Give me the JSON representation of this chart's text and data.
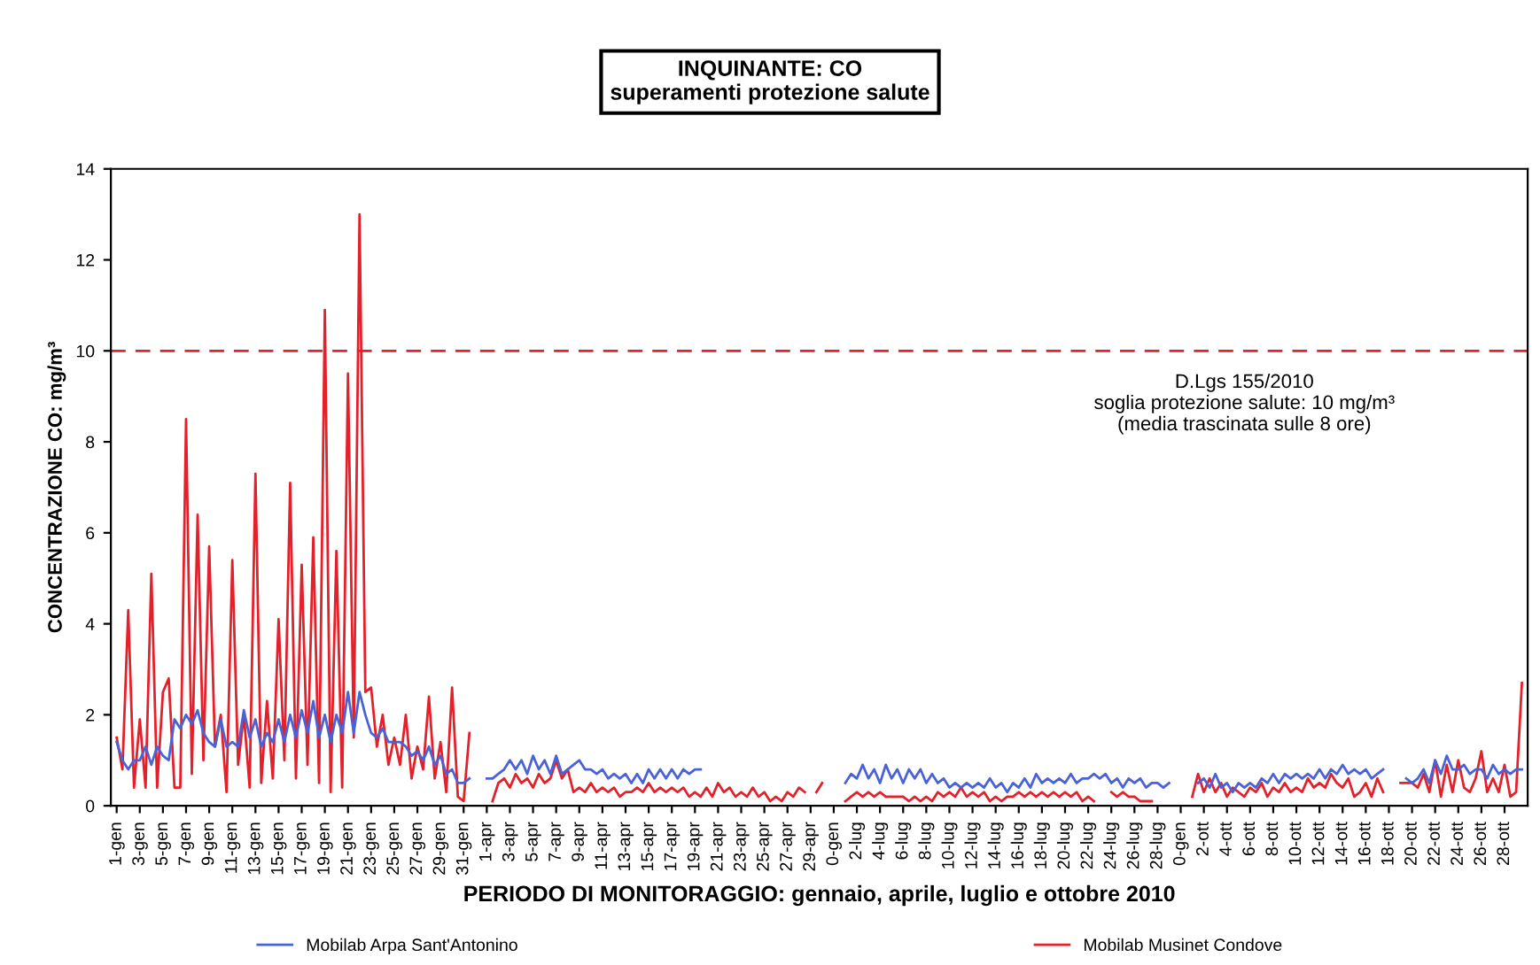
{
  "chart_data": {
    "type": "line",
    "title": "INQUINANTE: CO",
    "subtitle": "superamenti protezione salute",
    "xlabel": "PERIODO DI MONITORAGGIO: gennaio, aprile, luglio e ottobre 2010",
    "ylabel": "CONCENTRAZIONE CO: mg/m³",
    "categories": [
      "1-gen",
      null,
      null,
      null,
      "3-gen",
      null,
      null,
      null,
      "5-gen",
      null,
      null,
      null,
      "7-gen",
      null,
      null,
      null,
      "9-gen",
      null,
      null,
      null,
      "11-gen",
      null,
      null,
      null,
      "13-gen",
      null,
      null,
      null,
      "15-gen",
      null,
      null,
      null,
      "17-gen",
      null,
      null,
      null,
      "19-gen",
      null,
      null,
      null,
      "21-gen",
      null,
      null,
      null,
      "23-gen",
      null,
      null,
      null,
      "25-gen",
      null,
      null,
      null,
      "27-gen",
      null,
      null,
      null,
      "29-gen",
      null,
      null,
      null,
      "31-gen",
      null,
      null,
      null,
      "1-apr",
      null,
      null,
      null,
      "3-apr",
      null,
      null,
      null,
      "5-apr",
      null,
      null,
      null,
      "7-apr",
      null,
      null,
      null,
      "9-apr",
      null,
      null,
      null,
      "11-apr",
      null,
      null,
      null,
      "13-apr",
      null,
      null,
      null,
      "15-apr",
      null,
      null,
      null,
      "17-apr",
      null,
      null,
      null,
      "19-apr",
      null,
      null,
      null,
      "21-apr",
      null,
      null,
      null,
      "23-apr",
      null,
      null,
      null,
      "25-apr",
      null,
      null,
      null,
      "27-apr",
      null,
      null,
      null,
      "29-apr",
      null,
      null,
      null,
      "0-gen",
      null,
      null,
      null,
      "2-lug",
      null,
      null,
      null,
      "4-lug",
      null,
      null,
      null,
      "6-lug",
      null,
      null,
      null,
      "8-lug",
      null,
      null,
      null,
      "10-lug",
      null,
      null,
      null,
      "12-lug",
      null,
      null,
      null,
      "14-lug",
      null,
      null,
      null,
      "16-lug",
      null,
      null,
      null,
      "18-lug",
      null,
      null,
      null,
      "20-lug",
      null,
      null,
      null,
      "22-lug",
      null,
      null,
      null,
      "24-lug",
      null,
      null,
      null,
      "26-lug",
      null,
      null,
      null,
      "28-lug",
      null,
      null,
      null,
      "0-gen",
      null,
      null,
      null,
      "2-ott",
      null,
      null,
      null,
      "4-ott",
      null,
      null,
      null,
      "6-ott",
      null,
      null,
      null,
      "8-ott",
      null,
      null,
      null,
      "10-ott",
      null,
      null,
      null,
      "12-ott",
      null,
      null,
      null,
      "14-ott",
      null,
      null,
      null,
      "16-ott",
      null,
      null,
      null,
      "18-ott",
      null,
      null,
      null,
      "20-ott",
      null,
      null,
      null,
      "22-ott",
      null,
      null,
      null,
      "24-ott",
      null,
      null,
      null,
      "26-ott",
      null,
      null,
      null,
      "28-ott",
      null,
      null,
      null
    ],
    "series": [
      {
        "name": "Mobilab Arpa Sant'Antonino",
        "color": "#4a62d8",
        "values": [
          1.4,
          1.0,
          0.8,
          1.0,
          1.0,
          1.3,
          0.9,
          1.3,
          1.1,
          1.0,
          1.9,
          1.7,
          2.0,
          1.8,
          2.1,
          1.6,
          1.4,
          1.3,
          1.9,
          1.3,
          1.4,
          1.3,
          2.1,
          1.5,
          1.9,
          1.3,
          1.6,
          1.4,
          1.9,
          1.4,
          2.0,
          1.5,
          2.1,
          1.6,
          2.3,
          1.5,
          2.0,
          1.4,
          2.0,
          1.6,
          2.5,
          1.6,
          2.5,
          2.0,
          1.6,
          1.5,
          1.7,
          1.4,
          1.4,
          1.4,
          1.3,
          1.1,
          1.2,
          1.0,
          1.3,
          0.9,
          1.1,
          0.7,
          0.8,
          0.5,
          0.5,
          0.6,
          null,
          null,
          0.6,
          0.6,
          0.7,
          0.8,
          1.0,
          0.8,
          1.0,
          0.7,
          1.1,
          0.8,
          1.0,
          0.7,
          1.1,
          0.7,
          0.8,
          0.9,
          1.0,
          0.8,
          0.8,
          0.7,
          0.8,
          0.6,
          0.7,
          0.6,
          0.7,
          0.5,
          0.7,
          0.5,
          0.8,
          0.6,
          0.8,
          0.6,
          0.8,
          0.6,
          0.8,
          0.7,
          0.8,
          0.8,
          null,
          null,
          null,
          null,
          null,
          null,
          null,
          null,
          null,
          null,
          null,
          null,
          null,
          null,
          null,
          null,
          null,
          null,
          null,
          null,
          null,
          null,
          null,
          null,
          0.5,
          0.7,
          0.6,
          0.9,
          0.6,
          0.8,
          0.5,
          0.9,
          0.6,
          0.8,
          0.5,
          0.8,
          0.6,
          0.8,
          0.5,
          0.7,
          0.5,
          0.6,
          0.4,
          0.5,
          0.4,
          0.5,
          0.4,
          0.5,
          0.4,
          0.6,
          0.4,
          0.5,
          0.3,
          0.5,
          0.4,
          0.6,
          0.4,
          0.7,
          0.5,
          0.6,
          0.5,
          0.6,
          0.5,
          0.7,
          0.5,
          0.6,
          0.6,
          0.7,
          0.6,
          0.7,
          0.5,
          0.6,
          0.4,
          0.6,
          0.5,
          0.6,
          0.4,
          0.5,
          0.5,
          0.4,
          0.5,
          null,
          null,
          null,
          null,
          0.5,
          0.6,
          0.4,
          0.7,
          0.4,
          0.5,
          0.3,
          0.5,
          0.4,
          0.5,
          0.4,
          0.6,
          0.5,
          0.7,
          0.5,
          0.7,
          0.6,
          0.7,
          0.6,
          0.7,
          0.6,
          0.8,
          0.6,
          0.8,
          0.7,
          0.9,
          0.7,
          0.8,
          0.7,
          0.8,
          0.6,
          0.7,
          0.8,
          null,
          null,
          null,
          0.6,
          0.5,
          0.6,
          0.8,
          0.5,
          1.0,
          0.7,
          1.1,
          0.8,
          0.8,
          0.9,
          0.7,
          0.8,
          0.8,
          0.6,
          0.9,
          0.7,
          0.8,
          0.7,
          0.8,
          0.8
        ]
      },
      {
        "name": "Mobilab Musinet Condove",
        "color": "#e4202a",
        "values": [
          1.5,
          0.8,
          4.3,
          0.4,
          1.9,
          0.4,
          5.1,
          0.4,
          2.5,
          2.8,
          0.4,
          0.4,
          8.5,
          0.7,
          6.4,
          1.0,
          5.7,
          1.3,
          2.0,
          0.3,
          5.4,
          0.9,
          2.0,
          0.4,
          7.3,
          0.5,
          2.3,
          0.6,
          4.1,
          1.0,
          7.1,
          0.6,
          5.3,
          0.9,
          5.9,
          0.5,
          10.9,
          0.3,
          5.6,
          0.4,
          9.5,
          1.5,
          13.0,
          2.5,
          2.6,
          1.3,
          2.0,
          0.9,
          1.5,
          0.9,
          2.0,
          0.6,
          1.3,
          0.8,
          2.4,
          0.6,
          1.4,
          0.3,
          2.6,
          0.2,
          0.1,
          1.6,
          null,
          null,
          null,
          0.1,
          0.5,
          0.6,
          0.4,
          0.7,
          0.5,
          0.6,
          0.4,
          0.7,
          0.5,
          0.6,
          1.0,
          0.6,
          0.8,
          0.3,
          0.4,
          0.3,
          0.5,
          0.3,
          0.4,
          0.3,
          0.4,
          0.2,
          0.3,
          0.3,
          0.4,
          0.3,
          0.5,
          0.3,
          0.4,
          0.3,
          0.4,
          0.3,
          0.4,
          0.2,
          0.3,
          0.2,
          0.4,
          0.2,
          0.5,
          0.3,
          0.4,
          0.2,
          0.3,
          0.2,
          0.4,
          0.2,
          0.3,
          0.1,
          0.2,
          0.1,
          0.3,
          0.2,
          0.4,
          0.3,
          null,
          0.3,
          0.5,
          null,
          null,
          null,
          0.1,
          0.2,
          0.3,
          0.2,
          0.3,
          0.2,
          0.3,
          0.2,
          0.2,
          0.2,
          0.2,
          0.1,
          0.2,
          0.1,
          0.2,
          0.1,
          0.3,
          0.2,
          0.3,
          0.2,
          0.4,
          0.2,
          0.3,
          0.2,
          0.3,
          0.1,
          0.2,
          0.1,
          0.2,
          0.2,
          0.3,
          0.2,
          0.3,
          0.2,
          0.3,
          0.2,
          0.3,
          0.2,
          0.3,
          0.2,
          0.3,
          0.1,
          0.2,
          0.1,
          null,
          null,
          0.3,
          0.2,
          0.3,
          0.2,
          0.2,
          0.1,
          0.1,
          0.1,
          null,
          null,
          null,
          null,
          null,
          null,
          0.2,
          0.7,
          0.3,
          0.6,
          0.3,
          0.5,
          0.2,
          0.4,
          0.3,
          0.2,
          0.4,
          0.3,
          0.5,
          0.2,
          0.4,
          0.3,
          0.5,
          0.3,
          0.4,
          0.3,
          0.6,
          0.4,
          0.5,
          0.4,
          0.7,
          0.5,
          0.4,
          0.6,
          0.2,
          0.3,
          0.5,
          0.2,
          0.6,
          0.3,
          null,
          null,
          0.5,
          0.5,
          0.5,
          0.4,
          0.7,
          0.3,
          1.0,
          0.2,
          0.9,
          0.3,
          1.0,
          0.4,
          0.3,
          0.6,
          1.2,
          0.3,
          0.6,
          0.3,
          0.9,
          0.2,
          0.3,
          2.7
        ]
      }
    ],
    "ylim": [
      0,
      14
    ],
    "yticks": [
      0,
      2,
      4,
      6,
      8,
      10,
      12,
      14
    ],
    "grid": false,
    "legend": "bottom",
    "marker": "none",
    "line_style": "solid",
    "ref_lines": [
      {
        "axis": "y",
        "value": 10,
        "label": "D.Lgs 155/2010\nsoglia protezione salute: 10 mg/m³\n(media trascinata sulle 8 ore)",
        "color": "#e4202a",
        "line_style": "dashed"
      }
    ]
  }
}
